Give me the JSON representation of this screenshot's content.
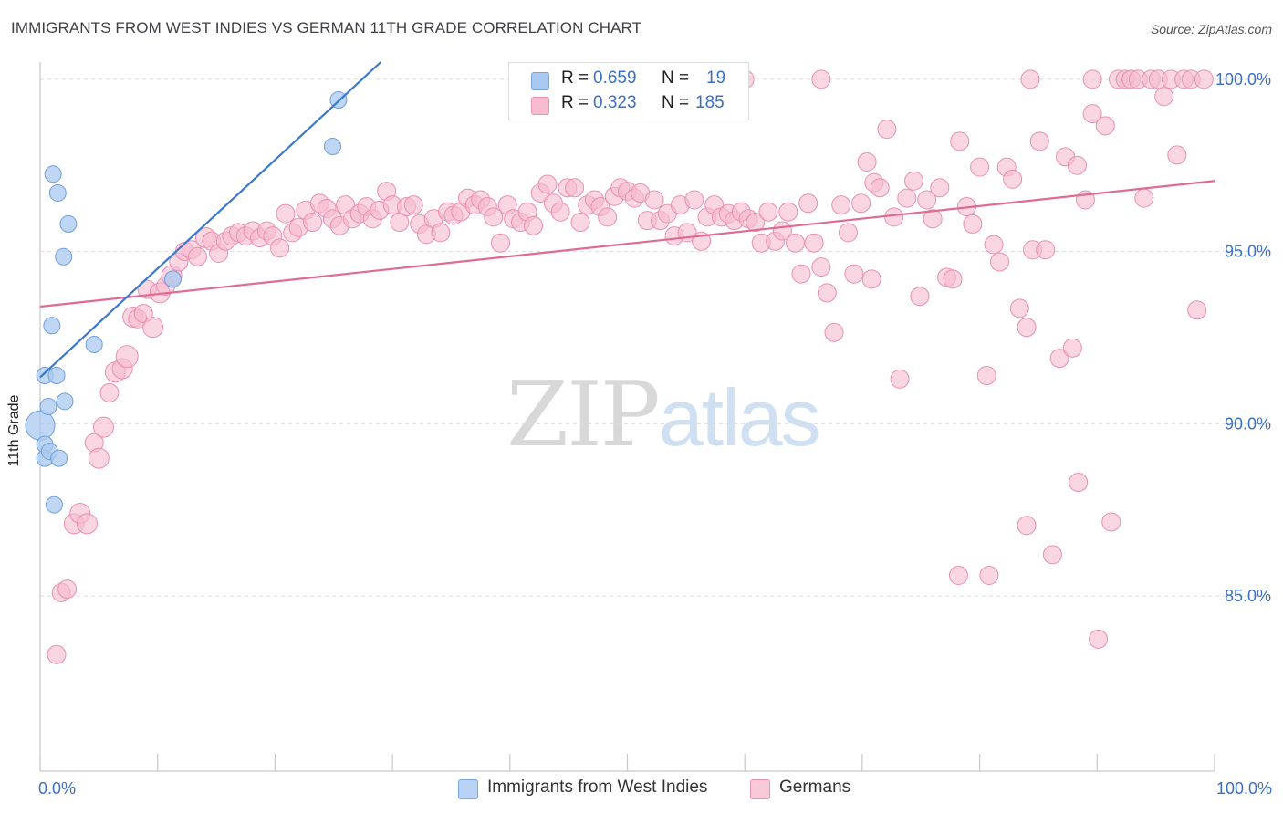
{
  "title": "IMMIGRANTS FROM WEST INDIES VS GERMAN 11TH GRADE CORRELATION CHART",
  "source": "Source: ZipAtlas.com",
  "watermark": {
    "zip": "ZIP",
    "atlas": "atlas"
  },
  "stats": [
    {
      "r_label": "R =",
      "r_value": "0.659",
      "n_label": "N =",
      "n_value": "19",
      "color": "#a9c8f0",
      "border": "#7aa6e0"
    },
    {
      "r_label": "R =",
      "r_value": "0.323",
      "n_label": "N =",
      "n_value": "185",
      "color": "#f7bcd0",
      "border": "#ec93b1"
    }
  ],
  "legend": [
    {
      "label": "Immigrants from West Indies",
      "color": "#b9d3f5",
      "border": "#7aa6e0"
    },
    {
      "label": "Germans",
      "color": "#f9c9d8",
      "border": "#ec93b1"
    }
  ],
  "colors": {
    "west_indies_fill": "#a9c8f0",
    "west_indies_stroke": "#6f9fdc",
    "west_indies_line": "#3a78d0",
    "germans_fill": "#f7bcd0",
    "germans_stroke": "#ea8fae",
    "germans_line": "#e06a96",
    "tick_label": "#3b6fc5",
    "grid": "#dcdcdc"
  },
  "chart_data": {
    "type": "scatter",
    "title": "IMMIGRANTS FROM WEST INDIES VS GERMAN 11TH GRADE CORRELATION CHART",
    "xlabel": "",
    "ylabel": "11th Grade",
    "xlim": [
      0,
      100
    ],
    "ylim": [
      80.5,
      100.5
    ],
    "x_tick_labels": [
      {
        "value": 0,
        "label": "0.0%"
      },
      {
        "value": 100,
        "label": "100.0%"
      }
    ],
    "y_tick_labels": [
      {
        "value": 100,
        "label": "100.0%"
      },
      {
        "value": 95,
        "label": "95.0%"
      },
      {
        "value": 90,
        "label": "90.0%"
      },
      {
        "value": 85,
        "label": "85.0%"
      }
    ],
    "grid": true,
    "legend_position": "bottom-center",
    "series": [
      {
        "name": "Immigrants from West Indies",
        "points": [
          [
            0.0,
            89.95,
            16
          ],
          [
            0.4,
            91.4,
            9
          ],
          [
            0.4,
            89.4,
            9
          ],
          [
            0.4,
            89.0,
            9
          ],
          [
            0.7,
            90.5,
            9
          ],
          [
            0.8,
            89.2,
            9
          ],
          [
            1.0,
            92.85,
            9
          ],
          [
            1.1,
            97.25,
            9
          ],
          [
            1.2,
            87.65,
            9
          ],
          [
            1.4,
            91.4,
            9
          ],
          [
            1.5,
            96.7,
            9
          ],
          [
            1.6,
            89.0,
            9
          ],
          [
            2.0,
            94.85,
            9
          ],
          [
            2.1,
            90.65,
            9
          ],
          [
            2.4,
            95.8,
            9
          ],
          [
            4.6,
            92.3,
            9
          ],
          [
            11.3,
            94.2,
            9
          ],
          [
            24.9,
            98.05,
            9
          ],
          [
            25.4,
            99.4,
            9
          ]
        ],
        "trend": {
          "x0": 0.0,
          "y0": 91.35,
          "x1": 29.0,
          "y1": 100.5
        }
      },
      {
        "name": "Germans",
        "points": [
          [
            1.4,
            83.3,
            10
          ],
          [
            1.8,
            85.1,
            10
          ],
          [
            2.3,
            85.2,
            10
          ],
          [
            2.9,
            87.1,
            11
          ],
          [
            3.4,
            87.4,
            11
          ],
          [
            4.0,
            87.1,
            11
          ],
          [
            4.6,
            89.45,
            10
          ],
          [
            5.0,
            89.0,
            11
          ],
          [
            5.4,
            89.9,
            11
          ],
          [
            5.9,
            90.9,
            10
          ],
          [
            6.4,
            91.5,
            11
          ],
          [
            7.0,
            91.6,
            11
          ],
          [
            7.4,
            91.95,
            12
          ],
          [
            7.9,
            93.1,
            11
          ],
          [
            8.3,
            93.05,
            10
          ],
          [
            8.8,
            93.2,
            10
          ],
          [
            9.1,
            93.9,
            10
          ],
          [
            9.6,
            92.8,
            11
          ],
          [
            10.2,
            93.8,
            11
          ],
          [
            10.7,
            94.0,
            10
          ],
          [
            11.2,
            94.3,
            11
          ],
          [
            11.8,
            94.7,
            10
          ],
          [
            12.3,
            95.0,
            10
          ],
          [
            12.9,
            95.05,
            10
          ],
          [
            13.4,
            94.85,
            10
          ],
          [
            14.1,
            95.4,
            11
          ],
          [
            14.6,
            95.3,
            10
          ],
          [
            15.2,
            94.95,
            10
          ],
          [
            15.8,
            95.3,
            10
          ],
          [
            16.3,
            95.45,
            10
          ],
          [
            16.9,
            95.55,
            10
          ],
          [
            17.5,
            95.45,
            10
          ],
          [
            18.1,
            95.6,
            10
          ],
          [
            18.7,
            95.4,
            10
          ],
          [
            19.3,
            95.6,
            10
          ],
          [
            19.8,
            95.45,
            10
          ],
          [
            20.4,
            95.1,
            10
          ],
          [
            20.9,
            96.1,
            10
          ],
          [
            21.5,
            95.55,
            10
          ],
          [
            22.0,
            95.7,
            10
          ],
          [
            22.6,
            96.2,
            10
          ],
          [
            23.2,
            95.85,
            10
          ],
          [
            23.8,
            96.4,
            10
          ],
          [
            24.4,
            96.25,
            10
          ],
          [
            24.9,
            95.95,
            10
          ],
          [
            25.5,
            95.75,
            10
          ],
          [
            26.0,
            96.35,
            10
          ],
          [
            26.6,
            95.95,
            10
          ],
          [
            27.2,
            96.1,
            10
          ],
          [
            27.8,
            96.3,
            10
          ],
          [
            28.3,
            95.95,
            10
          ],
          [
            28.9,
            96.2,
            10
          ],
          [
            29.5,
            96.75,
            10
          ],
          [
            30.0,
            96.35,
            10
          ],
          [
            30.6,
            95.85,
            10
          ],
          [
            31.2,
            96.3,
            10
          ],
          [
            31.8,
            96.35,
            10
          ],
          [
            32.3,
            95.8,
            10
          ],
          [
            32.9,
            95.5,
            10
          ],
          [
            33.5,
            95.95,
            10
          ],
          [
            34.1,
            95.55,
            10
          ],
          [
            34.7,
            96.15,
            10
          ],
          [
            35.2,
            96.05,
            10
          ],
          [
            35.8,
            96.15,
            10
          ],
          [
            36.4,
            96.55,
            10
          ],
          [
            37.0,
            96.35,
            10
          ],
          [
            37.5,
            96.5,
            10
          ],
          [
            38.1,
            96.3,
            10
          ],
          [
            38.6,
            96.0,
            10
          ],
          [
            39.2,
            95.25,
            10
          ],
          [
            39.8,
            96.35,
            10
          ],
          [
            40.3,
            95.95,
            10
          ],
          [
            40.9,
            95.85,
            10
          ],
          [
            41.5,
            96.15,
            10
          ],
          [
            42.0,
            95.75,
            10
          ],
          [
            42.6,
            96.7,
            10
          ],
          [
            43.2,
            96.95,
            10
          ],
          [
            43.7,
            96.4,
            10
          ],
          [
            44.3,
            96.15,
            10
          ],
          [
            44.9,
            96.85,
            10
          ],
          [
            45.5,
            96.85,
            10
          ],
          [
            46.0,
            95.85,
            10
          ],
          [
            46.6,
            96.35,
            10
          ],
          [
            47.2,
            96.5,
            10
          ],
          [
            47.7,
            96.3,
            10
          ],
          [
            48.3,
            96.0,
            10
          ],
          [
            48.9,
            96.6,
            10
          ],
          [
            49.4,
            96.85,
            10
          ],
          [
            50.0,
            96.75,
            10
          ],
          [
            50.6,
            96.55,
            10
          ],
          [
            51.1,
            96.7,
            10
          ],
          [
            51.7,
            95.9,
            10
          ],
          [
            52.3,
            96.5,
            10
          ],
          [
            52.8,
            95.9,
            10
          ],
          [
            53.4,
            96.1,
            10
          ],
          [
            54.0,
            95.45,
            10
          ],
          [
            54.5,
            96.35,
            10
          ],
          [
            55.1,
            95.55,
            10
          ],
          [
            55.7,
            96.5,
            10
          ],
          [
            56.3,
            95.3,
            10
          ],
          [
            56.8,
            96.0,
            10
          ],
          [
            57.4,
            96.35,
            10
          ],
          [
            58.0,
            96.0,
            10
          ],
          [
            58.6,
            96.1,
            10
          ],
          [
            59.1,
            95.9,
            10
          ],
          [
            59.7,
            96.15,
            10
          ],
          [
            60.3,
            95.95,
            10
          ],
          [
            60.9,
            95.85,
            10
          ],
          [
            61.4,
            95.25,
            10
          ],
          [
            62.0,
            96.15,
            10
          ],
          [
            62.6,
            95.3,
            10
          ],
          [
            63.2,
            95.6,
            10
          ],
          [
            63.7,
            96.15,
            10
          ],
          [
            64.3,
            95.25,
            10
          ],
          [
            64.8,
            94.35,
            10
          ],
          [
            65.4,
            96.4,
            10
          ],
          [
            65.9,
            95.25,
            10
          ],
          [
            66.5,
            94.55,
            10
          ],
          [
            67.0,
            93.8,
            10
          ],
          [
            67.6,
            92.65,
            10
          ],
          [
            68.2,
            96.35,
            10
          ],
          [
            68.8,
            95.55,
            10
          ],
          [
            69.3,
            94.35,
            10
          ],
          [
            69.9,
            96.4,
            10
          ],
          [
            70.4,
            97.6,
            10
          ],
          [
            71.0,
            97.0,
            10
          ],
          [
            71.5,
            96.85,
            10
          ],
          [
            72.1,
            98.55,
            10
          ],
          [
            72.7,
            96.0,
            10
          ],
          [
            73.2,
            91.3,
            10
          ],
          [
            73.8,
            96.55,
            10
          ],
          [
            74.4,
            97.05,
            10
          ],
          [
            74.9,
            93.7,
            10
          ],
          [
            75.5,
            96.5,
            10
          ],
          [
            76.0,
            95.95,
            10
          ],
          [
            76.6,
            96.85,
            10
          ],
          [
            77.2,
            94.25,
            10
          ],
          [
            77.7,
            94.2,
            10
          ],
          [
            78.3,
            98.2,
            10
          ],
          [
            78.9,
            96.3,
            10
          ],
          [
            79.4,
            95.8,
            10
          ],
          [
            80.0,
            97.45,
            10
          ],
          [
            80.6,
            91.4,
            10
          ],
          [
            81.2,
            95.2,
            10
          ],
          [
            81.7,
            94.7,
            10
          ],
          [
            82.3,
            97.45,
            10
          ],
          [
            82.8,
            97.1,
            10
          ],
          [
            83.4,
            93.35,
            10
          ],
          [
            84.0,
            87.05,
            10
          ],
          [
            84.5,
            95.05,
            10
          ],
          [
            85.1,
            98.2,
            10
          ],
          [
            85.6,
            95.05,
            10
          ],
          [
            86.2,
            86.2,
            10
          ],
          [
            86.8,
            91.9,
            10
          ],
          [
            87.3,
            97.75,
            10
          ],
          [
            87.9,
            92.2,
            10
          ],
          [
            88.4,
            88.3,
            10
          ],
          [
            89.0,
            96.5,
            10
          ],
          [
            89.6,
            99.0,
            10
          ],
          [
            90.1,
            83.75,
            10
          ],
          [
            90.7,
            98.65,
            10
          ],
          [
            91.2,
            87.15,
            10
          ],
          [
            91.8,
            100.0,
            10
          ],
          [
            92.4,
            100.0,
            10
          ],
          [
            92.9,
            100.0,
            10
          ],
          [
            93.5,
            100.0,
            10
          ],
          [
            94.0,
            96.55,
            10
          ],
          [
            94.6,
            100.0,
            10
          ],
          [
            95.2,
            100.0,
            10
          ],
          [
            95.7,
            99.5,
            10
          ],
          [
            96.3,
            100.0,
            10
          ],
          [
            96.8,
            97.8,
            10
          ],
          [
            97.4,
            100.0,
            10
          ],
          [
            98.0,
            100.0,
            10
          ],
          [
            98.5,
            93.3,
            10
          ],
          [
            99.1,
            100.0,
            10
          ],
          [
            78.2,
            85.6,
            10
          ],
          [
            80.8,
            85.6,
            10
          ],
          [
            66.5,
            100.0,
            10
          ],
          [
            60.0,
            100.0,
            10
          ],
          [
            89.6,
            100.0,
            10
          ],
          [
            84.3,
            100.0,
            10
          ],
          [
            88.3,
            97.5,
            10
          ],
          [
            70.8,
            94.2,
            10
          ],
          [
            84.0,
            92.8,
            10
          ]
        ],
        "trend": {
          "x0": 0.0,
          "y0": 93.4,
          "x1": 100.0,
          "y1": 97.05
        }
      }
    ]
  }
}
